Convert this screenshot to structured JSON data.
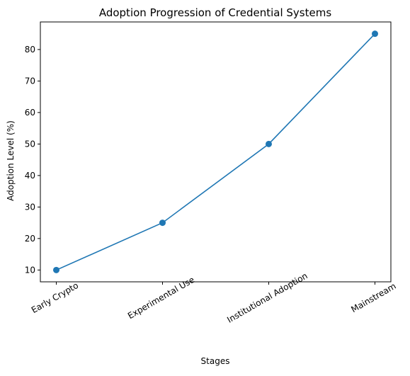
{
  "chart_data": {
    "type": "line",
    "title": "Adoption Progression of Credential Systems",
    "xlabel": "Stages",
    "ylabel": "Adoption Level (%)",
    "categories": [
      "Early Crypto",
      "Experimental Use",
      "Institutional Adoption",
      "Mainstream"
    ],
    "series": [
      {
        "values": [
          10,
          25,
          50,
          85
        ],
        "color": "#1f77b4",
        "marker": "circle"
      }
    ],
    "y_ticks": [
      10,
      20,
      30,
      40,
      50,
      60,
      70,
      80
    ],
    "ylim": [
      6.25,
      88.75
    ],
    "grid": false,
    "x_tick_rotation_deg": 30
  }
}
